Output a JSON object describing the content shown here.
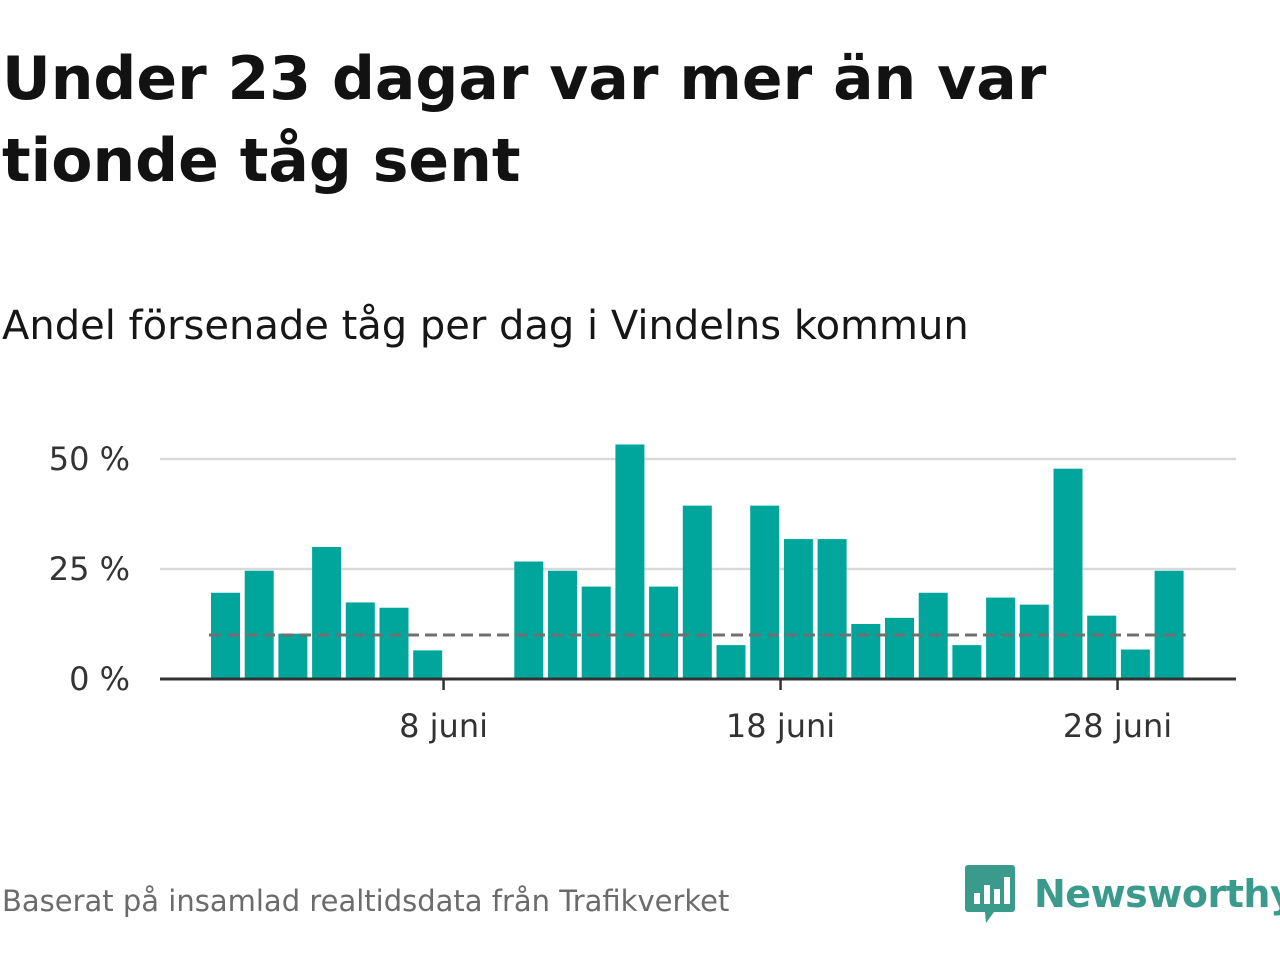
{
  "title": "Under 23 dagar var mer än var tionde tåg sent",
  "subtitle": "Andel försenade tåg per dag i Vindelns kommun",
  "footer": {
    "source": "Baserat på insamlad realtidsdata från Trafikverket",
    "brand": "Newsworthy"
  },
  "colors": {
    "bar": "#00a69c",
    "reference_line": "#707070",
    "grid": "#d9d9d9",
    "axis": "#333333",
    "brand": "#3a9a8c"
  },
  "chart_data": {
    "type": "bar",
    "x": [
      "2024-06-01",
      "2024-06-02",
      "2024-06-03",
      "2024-06-04",
      "2024-06-05",
      "2024-06-06",
      "2024-06-07",
      "2024-06-08",
      "2024-06-09",
      "2024-06-10",
      "2024-06-11",
      "2024-06-12",
      "2024-06-13",
      "2024-06-14",
      "2024-06-15",
      "2024-06-16",
      "2024-06-17",
      "2024-06-18",
      "2024-06-19",
      "2024-06-20",
      "2024-06-21",
      "2024-06-22",
      "2024-06-23",
      "2024-06-24",
      "2024-06-25",
      "2024-06-26",
      "2024-06-27",
      "2024-06-28",
      "2024-06-29"
    ],
    "values": [
      19.6,
      24.6,
      10.3,
      30.0,
      17.4,
      16.2,
      6.5,
      0,
      0,
      26.7,
      24.6,
      21.0,
      53.3,
      21.0,
      39.4,
      7.7,
      39.4,
      31.8,
      31.8,
      12.5,
      13.9,
      19.6,
      7.7,
      18.5,
      16.9,
      47.8,
      14.4,
      6.7,
      24.6
    ],
    "reference_value": 10,
    "ylim": [
      0,
      55
    ],
    "yticks": [
      0,
      25,
      50
    ],
    "ytick_labels": [
      "0 %",
      "25 %",
      "50 %"
    ],
    "xticks": [
      {
        "date": "2024-06-08",
        "label": "8 juni"
      },
      {
        "date": "2024-06-18",
        "label": "18 juni"
      },
      {
        "date": "2024-06-28",
        "label": "28 juni"
      }
    ],
    "grid": true
  }
}
